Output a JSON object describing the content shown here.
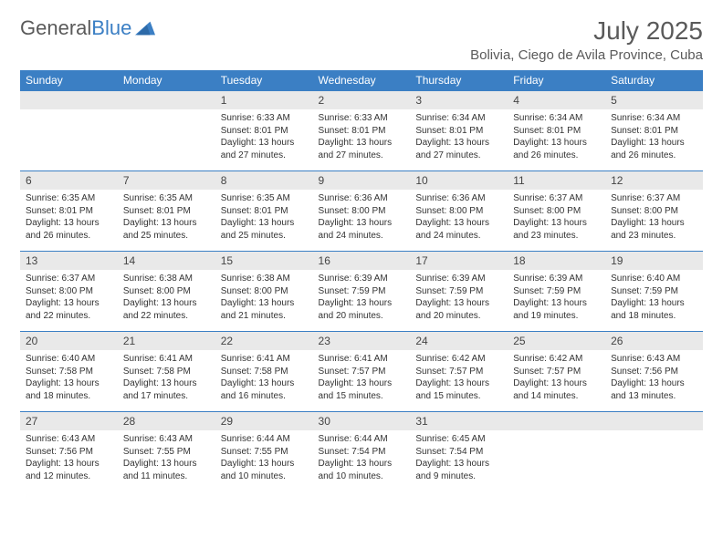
{
  "logo": {
    "text1": "General",
    "text2": "Blue"
  },
  "title": "July 2025",
  "location": "Bolivia, Ciego de Avila Province, Cuba",
  "colors": {
    "header_bg": "#3b7fc4",
    "header_text": "#ffffff",
    "daynum_bg": "#e9e9e9",
    "text": "#333333",
    "title_text": "#5a5a5a"
  },
  "daysOfWeek": [
    "Sunday",
    "Monday",
    "Tuesday",
    "Wednesday",
    "Thursday",
    "Friday",
    "Saturday"
  ],
  "weeks": [
    [
      {
        "n": "",
        "sunrise": "",
        "sunset": "",
        "daylight": ""
      },
      {
        "n": "",
        "sunrise": "",
        "sunset": "",
        "daylight": ""
      },
      {
        "n": "1",
        "sunrise": "Sunrise: 6:33 AM",
        "sunset": "Sunset: 8:01 PM",
        "daylight": "Daylight: 13 hours and 27 minutes."
      },
      {
        "n": "2",
        "sunrise": "Sunrise: 6:33 AM",
        "sunset": "Sunset: 8:01 PM",
        "daylight": "Daylight: 13 hours and 27 minutes."
      },
      {
        "n": "3",
        "sunrise": "Sunrise: 6:34 AM",
        "sunset": "Sunset: 8:01 PM",
        "daylight": "Daylight: 13 hours and 27 minutes."
      },
      {
        "n": "4",
        "sunrise": "Sunrise: 6:34 AM",
        "sunset": "Sunset: 8:01 PM",
        "daylight": "Daylight: 13 hours and 26 minutes."
      },
      {
        "n": "5",
        "sunrise": "Sunrise: 6:34 AM",
        "sunset": "Sunset: 8:01 PM",
        "daylight": "Daylight: 13 hours and 26 minutes."
      }
    ],
    [
      {
        "n": "6",
        "sunrise": "Sunrise: 6:35 AM",
        "sunset": "Sunset: 8:01 PM",
        "daylight": "Daylight: 13 hours and 26 minutes."
      },
      {
        "n": "7",
        "sunrise": "Sunrise: 6:35 AM",
        "sunset": "Sunset: 8:01 PM",
        "daylight": "Daylight: 13 hours and 25 minutes."
      },
      {
        "n": "8",
        "sunrise": "Sunrise: 6:35 AM",
        "sunset": "Sunset: 8:01 PM",
        "daylight": "Daylight: 13 hours and 25 minutes."
      },
      {
        "n": "9",
        "sunrise": "Sunrise: 6:36 AM",
        "sunset": "Sunset: 8:00 PM",
        "daylight": "Daylight: 13 hours and 24 minutes."
      },
      {
        "n": "10",
        "sunrise": "Sunrise: 6:36 AM",
        "sunset": "Sunset: 8:00 PM",
        "daylight": "Daylight: 13 hours and 24 minutes."
      },
      {
        "n": "11",
        "sunrise": "Sunrise: 6:37 AM",
        "sunset": "Sunset: 8:00 PM",
        "daylight": "Daylight: 13 hours and 23 minutes."
      },
      {
        "n": "12",
        "sunrise": "Sunrise: 6:37 AM",
        "sunset": "Sunset: 8:00 PM",
        "daylight": "Daylight: 13 hours and 23 minutes."
      }
    ],
    [
      {
        "n": "13",
        "sunrise": "Sunrise: 6:37 AM",
        "sunset": "Sunset: 8:00 PM",
        "daylight": "Daylight: 13 hours and 22 minutes."
      },
      {
        "n": "14",
        "sunrise": "Sunrise: 6:38 AM",
        "sunset": "Sunset: 8:00 PM",
        "daylight": "Daylight: 13 hours and 22 minutes."
      },
      {
        "n": "15",
        "sunrise": "Sunrise: 6:38 AM",
        "sunset": "Sunset: 8:00 PM",
        "daylight": "Daylight: 13 hours and 21 minutes."
      },
      {
        "n": "16",
        "sunrise": "Sunrise: 6:39 AM",
        "sunset": "Sunset: 7:59 PM",
        "daylight": "Daylight: 13 hours and 20 minutes."
      },
      {
        "n": "17",
        "sunrise": "Sunrise: 6:39 AM",
        "sunset": "Sunset: 7:59 PM",
        "daylight": "Daylight: 13 hours and 20 minutes."
      },
      {
        "n": "18",
        "sunrise": "Sunrise: 6:39 AM",
        "sunset": "Sunset: 7:59 PM",
        "daylight": "Daylight: 13 hours and 19 minutes."
      },
      {
        "n": "19",
        "sunrise": "Sunrise: 6:40 AM",
        "sunset": "Sunset: 7:59 PM",
        "daylight": "Daylight: 13 hours and 18 minutes."
      }
    ],
    [
      {
        "n": "20",
        "sunrise": "Sunrise: 6:40 AM",
        "sunset": "Sunset: 7:58 PM",
        "daylight": "Daylight: 13 hours and 18 minutes."
      },
      {
        "n": "21",
        "sunrise": "Sunrise: 6:41 AM",
        "sunset": "Sunset: 7:58 PM",
        "daylight": "Daylight: 13 hours and 17 minutes."
      },
      {
        "n": "22",
        "sunrise": "Sunrise: 6:41 AM",
        "sunset": "Sunset: 7:58 PM",
        "daylight": "Daylight: 13 hours and 16 minutes."
      },
      {
        "n": "23",
        "sunrise": "Sunrise: 6:41 AM",
        "sunset": "Sunset: 7:57 PM",
        "daylight": "Daylight: 13 hours and 15 minutes."
      },
      {
        "n": "24",
        "sunrise": "Sunrise: 6:42 AM",
        "sunset": "Sunset: 7:57 PM",
        "daylight": "Daylight: 13 hours and 15 minutes."
      },
      {
        "n": "25",
        "sunrise": "Sunrise: 6:42 AM",
        "sunset": "Sunset: 7:57 PM",
        "daylight": "Daylight: 13 hours and 14 minutes."
      },
      {
        "n": "26",
        "sunrise": "Sunrise: 6:43 AM",
        "sunset": "Sunset: 7:56 PM",
        "daylight": "Daylight: 13 hours and 13 minutes."
      }
    ],
    [
      {
        "n": "27",
        "sunrise": "Sunrise: 6:43 AM",
        "sunset": "Sunset: 7:56 PM",
        "daylight": "Daylight: 13 hours and 12 minutes."
      },
      {
        "n": "28",
        "sunrise": "Sunrise: 6:43 AM",
        "sunset": "Sunset: 7:55 PM",
        "daylight": "Daylight: 13 hours and 11 minutes."
      },
      {
        "n": "29",
        "sunrise": "Sunrise: 6:44 AM",
        "sunset": "Sunset: 7:55 PM",
        "daylight": "Daylight: 13 hours and 10 minutes."
      },
      {
        "n": "30",
        "sunrise": "Sunrise: 6:44 AM",
        "sunset": "Sunset: 7:54 PM",
        "daylight": "Daylight: 13 hours and 10 minutes."
      },
      {
        "n": "31",
        "sunrise": "Sunrise: 6:45 AM",
        "sunset": "Sunset: 7:54 PM",
        "daylight": "Daylight: 13 hours and 9 minutes."
      },
      {
        "n": "",
        "sunrise": "",
        "sunset": "",
        "daylight": ""
      },
      {
        "n": "",
        "sunrise": "",
        "sunset": "",
        "daylight": ""
      }
    ]
  ]
}
